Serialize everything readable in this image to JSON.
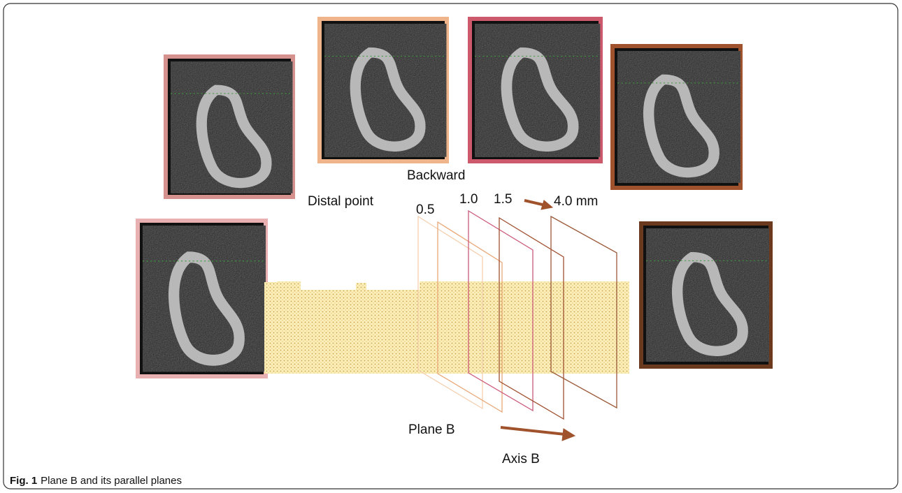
{
  "labels": {
    "backward": "Backward",
    "distal_point": "Distal point",
    "plane_05": "0.5",
    "plane_10": "1.0",
    "plane_15": "1.5",
    "plane_40": "4.0 mm",
    "plane_b": "Plane B",
    "axis_b": "Axis B"
  },
  "caption": {
    "label": "Fig. 1",
    "text": "Plane B and its parallel planes"
  }
}
